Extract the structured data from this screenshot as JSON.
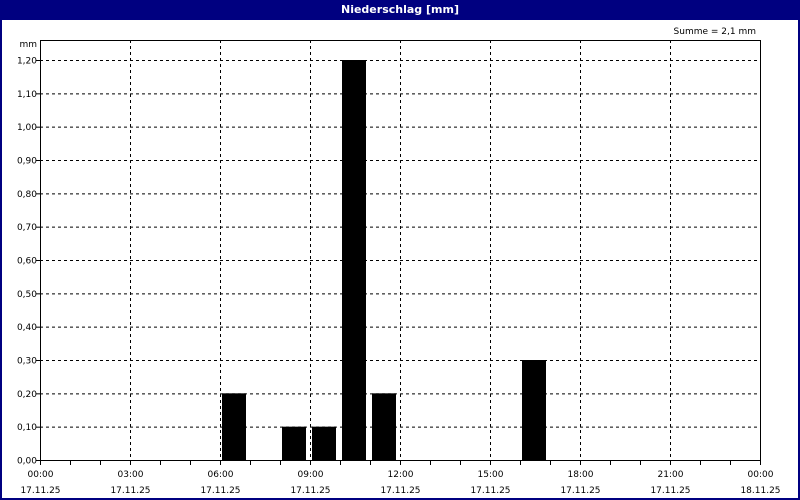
{
  "window": {
    "title": "Niederschlag [mm]"
  },
  "chart_data": {
    "type": "bar",
    "title": "Niederschlag [mm]",
    "ylabel": "mm",
    "annotation": "Summe = 2,1 mm",
    "ylim": [
      0,
      1.2
    ],
    "yticks": [
      "0,00",
      "0,10",
      "0,20",
      "0,30",
      "0,40",
      "0,50",
      "0,60",
      "0,70",
      "0,80",
      "0,90",
      "1,00",
      "1,10",
      "1,20"
    ],
    "xlim": [
      "17.11.25 00:00",
      "18.11.25 00:00"
    ],
    "xticks": [
      {
        "time": "00:00",
        "date": "17.11.25"
      },
      {
        "time": "03:00",
        "date": "17.11.25"
      },
      {
        "time": "06:00",
        "date": "17.11.25"
      },
      {
        "time": "09:00",
        "date": "17.11.25"
      },
      {
        "time": "12:00",
        "date": "17.11.25"
      },
      {
        "time": "15:00",
        "date": "17.11.25"
      },
      {
        "time": "18:00",
        "date": "17.11.25"
      },
      {
        "time": "21:00",
        "date": "17.11.25"
      },
      {
        "time": "00:00",
        "date": "18.11.25"
      }
    ],
    "grid": true,
    "bar_color": "#000000",
    "bars": [
      {
        "hour": 6,
        "value": 0.2
      },
      {
        "hour": 8,
        "value": 0.1
      },
      {
        "hour": 9,
        "value": 0.1
      },
      {
        "hour": 10,
        "value": 1.2
      },
      {
        "hour": 11,
        "value": 0.2
      },
      {
        "hour": 16,
        "value": 0.3
      }
    ]
  }
}
